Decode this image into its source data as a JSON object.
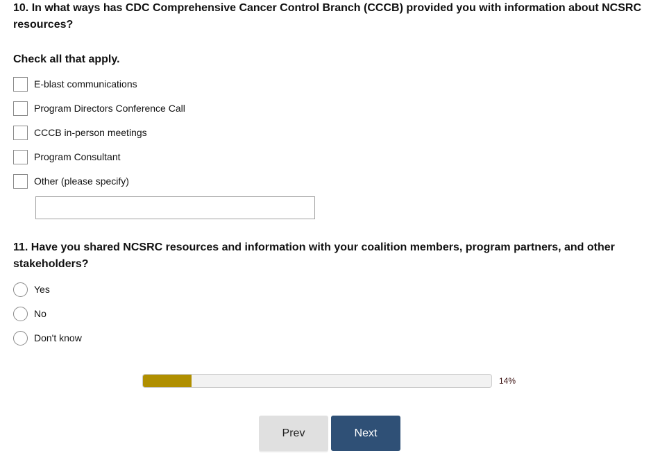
{
  "q10": {
    "title": "10. In what ways has CDC Comprehensive Cancer Control Branch (CCCB) provided you with information about NCSRC resources?",
    "instruction": "Check all that apply.",
    "options": [
      "E-blast communications",
      "Program Directors Conference Call",
      "CCCB in-person meetings",
      "Program Consultant",
      "Other (please specify)"
    ],
    "other_value": ""
  },
  "q11": {
    "title": "11. Have you shared NCSRC resources and information with your coalition members, program partners, and other stakeholders?",
    "options": [
      "Yes",
      "No",
      "Don't know"
    ]
  },
  "progress": {
    "percent": 14,
    "label": "14%",
    "fill_color": "#b08f00"
  },
  "nav": {
    "prev_label": "Prev",
    "next_label": "Next",
    "next_color": "#2f5076"
  }
}
